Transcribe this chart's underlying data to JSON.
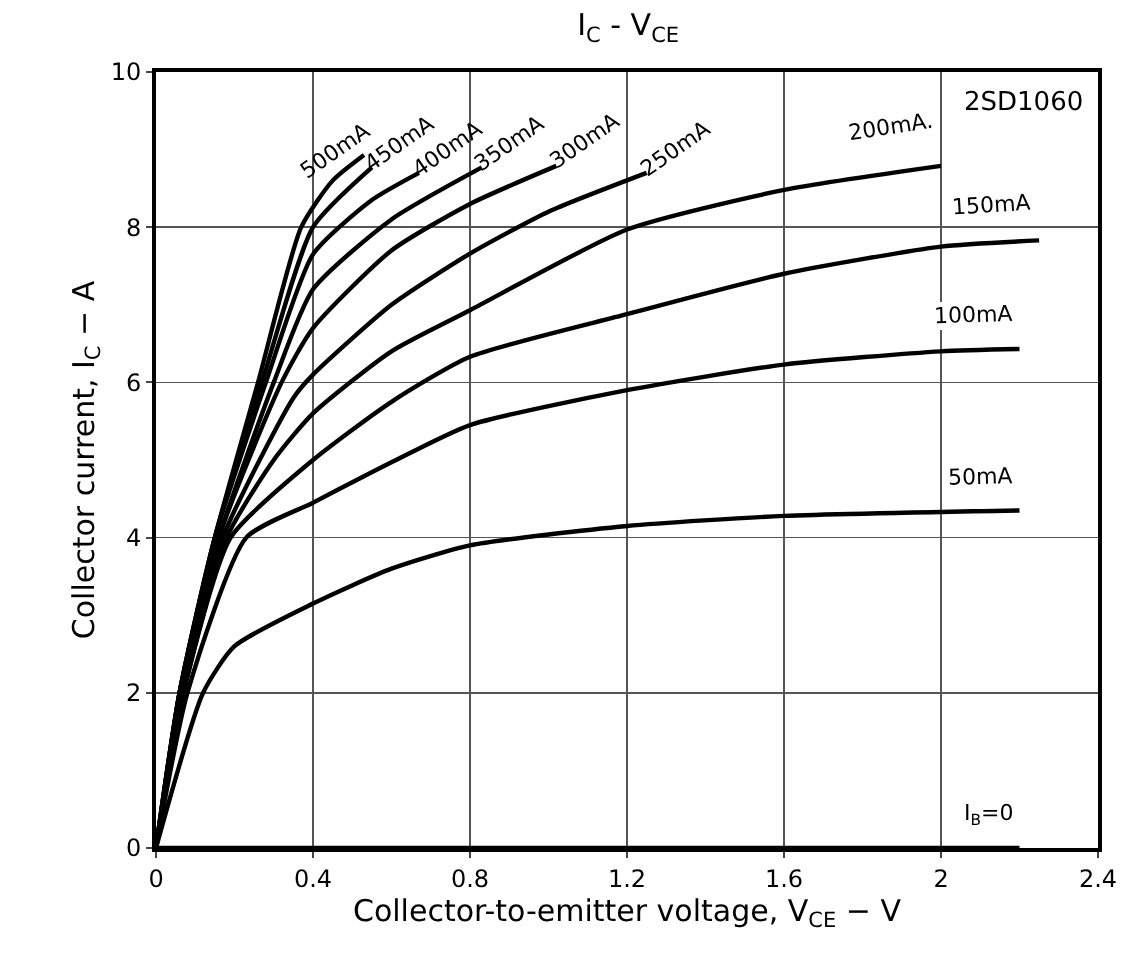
{
  "chart_data": {
    "type": "line",
    "title": "I$_{C}$ - V$_{CE}$",
    "xlabel": "Collector-to-emitter voltage, V$_{CE}$ − V",
    "ylabel": "Collector current, I$_{C}$ − A",
    "xlim": [
      0,
      2.4
    ],
    "xticks": [
      0,
      0.4,
      0.8,
      1.2,
      1.6,
      2.0,
      2.4
    ],
    "ylim": [
      0,
      10
    ],
    "yticks": [
      0,
      2,
      4,
      6,
      8,
      10
    ],
    "grid": true,
    "legend": false,
    "marker": "none",
    "line_style": "solid",
    "annotations": [
      "2SD1060"
    ],
    "series": [
      {
        "name": "500mA",
        "color": "#000000",
        "x": [
          0,
          0.06,
          0.15,
          0.26,
          0.37,
          0.45,
          0.53
        ],
        "values": [
          0,
          2,
          4,
          6,
          8,
          8.6,
          8.93
        ]
      },
      {
        "name": "450mA",
        "color": "#000000",
        "x": [
          0,
          0.06,
          0.15,
          0.27,
          0.4,
          0.55
        ],
        "values": [
          0,
          2,
          4,
          6,
          8,
          8.77
        ]
      },
      {
        "name": "400mA",
        "color": "#000000",
        "x": [
          0,
          0.06,
          0.15,
          0.28,
          0.4,
          0.55,
          0.67
        ],
        "values": [
          0,
          2,
          4,
          6,
          7.65,
          8.35,
          8.7
        ]
      },
      {
        "name": "350mA",
        "color": "#000000",
        "x": [
          0,
          0.06,
          0.16,
          0.3,
          0.4,
          0.6,
          0.83
        ],
        "values": [
          0,
          2,
          4,
          6,
          7.2,
          8.1,
          8.77
        ]
      },
      {
        "name": "300mA",
        "color": "#000000",
        "x": [
          0,
          0.065,
          0.16,
          0.32,
          0.4,
          0.6,
          0.8,
          1.02
        ],
        "values": [
          0,
          2,
          4,
          6,
          6.7,
          7.7,
          8.3,
          8.79
        ]
      },
      {
        "name": "250mA",
        "color": "#000000",
        "x": [
          0,
          0.07,
          0.17,
          0.35,
          0.4,
          0.6,
          0.8,
          1.0,
          1.25
        ],
        "values": [
          0,
          2,
          4,
          5.8,
          6.1,
          7.0,
          7.66,
          8.2,
          8.7
        ]
      },
      {
        "name": "200mA.",
        "color": "#000000",
        "x": [
          0,
          0.07,
          0.18,
          0.3,
          0.4,
          0.6,
          0.8,
          1.2,
          1.6,
          2.0
        ],
        "values": [
          0,
          2,
          4,
          5.0,
          5.6,
          6.4,
          6.93,
          7.97,
          8.48,
          8.79
        ]
      },
      {
        "name": "150mA",
        "color": "#000000",
        "x": [
          0,
          0.07,
          0.19,
          0.4,
          0.6,
          0.8,
          1.2,
          1.6,
          2.0,
          2.25
        ],
        "values": [
          0,
          2,
          4,
          5.0,
          5.75,
          6.33,
          6.88,
          7.4,
          7.75,
          7.83
        ]
      },
      {
        "name": "100mA",
        "color": "#000000",
        "x": [
          0,
          0.08,
          0.23,
          0.4,
          0.6,
          0.8,
          1.2,
          1.6,
          2.0,
          2.2
        ],
        "values": [
          0,
          2,
          4,
          4.45,
          4.97,
          5.45,
          5.9,
          6.23,
          6.4,
          6.43
        ]
      },
      {
        "name": "50mA",
        "color": "#000000",
        "x": [
          0,
          0.12,
          0.2,
          0.4,
          0.6,
          0.8,
          1.2,
          1.6,
          2.2
        ],
        "values": [
          0,
          2,
          2.6,
          3.15,
          3.6,
          3.9,
          4.15,
          4.28,
          4.35
        ]
      },
      {
        "name": "I$_{B}$=0",
        "color": "#000000",
        "x": [
          0,
          2.2
        ],
        "values": [
          0,
          0
        ]
      }
    ]
  }
}
